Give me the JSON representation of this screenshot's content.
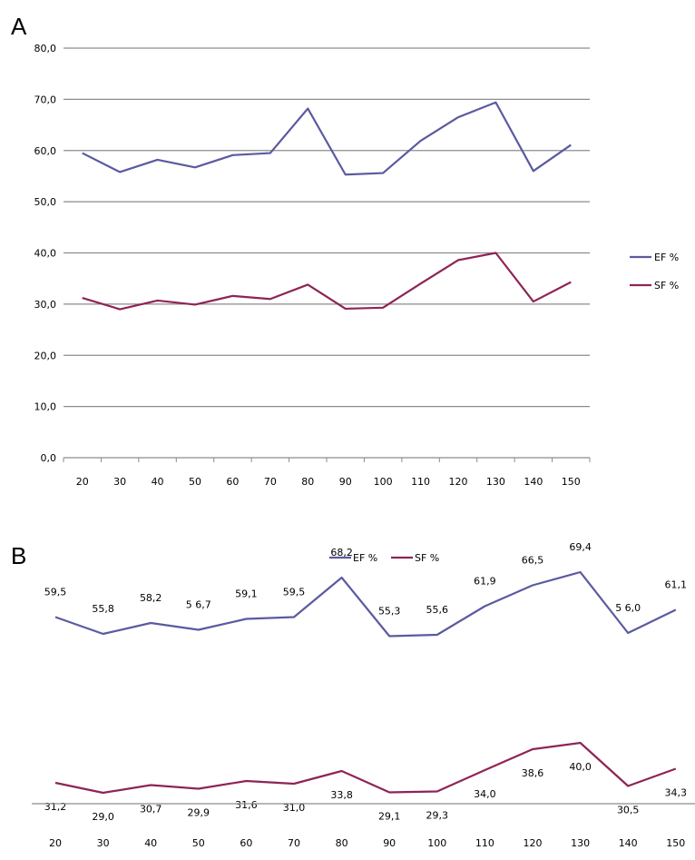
{
  "panels": {
    "a_letter": "A",
    "b_letter": "B"
  },
  "colors": {
    "ef": "#5a5aa0",
    "sf": "#8e2456",
    "grid": "#8c8c8c"
  },
  "chart_data": [
    {
      "type": "line",
      "panel": "A",
      "categories": [
        "20",
        "30",
        "40",
        "50",
        "60",
        "70",
        "80",
        "90",
        "100",
        "110",
        "120",
        "130",
        "140",
        "150"
      ],
      "series": [
        {
          "name": "EF %",
          "values": [
            59.5,
            55.8,
            58.2,
            56.7,
            59.1,
            59.5,
            68.2,
            55.3,
            55.6,
            61.9,
            66.5,
            69.4,
            56.0,
            61.1
          ]
        },
        {
          "name": "SF %",
          "values": [
            31.2,
            29.0,
            30.7,
            29.9,
            31.6,
            31.0,
            33.8,
            29.1,
            29.3,
            34.0,
            38.6,
            40.0,
            30.5,
            34.3
          ]
        }
      ],
      "yticks": [
        "0,0",
        "10,0",
        "20,0",
        "30,0",
        "40,0",
        "50,0",
        "60,0",
        "70,0",
        "80,0"
      ],
      "ylim": [
        0,
        80
      ],
      "grid": true,
      "legend": "right"
    },
    {
      "type": "line",
      "panel": "B",
      "categories": [
        "20",
        "30",
        "40",
        "50",
        "60",
        "70",
        "80",
        "90",
        "100",
        "110",
        "120",
        "130",
        "140",
        "150"
      ],
      "series": [
        {
          "name": "EF %",
          "values": [
            59.5,
            55.8,
            58.2,
            56.7,
            59.1,
            59.5,
            68.2,
            55.3,
            55.6,
            61.9,
            66.5,
            69.4,
            56.0,
            61.1
          ],
          "labels": [
            "59,5",
            "55,8",
            "58,2",
            "5 6,7",
            "59,1",
            "59,5",
            "68,2",
            "55,3",
            "55,6",
            "61,9",
            "66,5",
            "69,4",
            "5 6,0",
            "61,1"
          ]
        },
        {
          "name": "SF %",
          "values": [
            31.2,
            29.0,
            30.7,
            29.9,
            31.6,
            31.0,
            33.8,
            29.1,
            29.3,
            34.0,
            38.6,
            40.0,
            30.5,
            34.3
          ],
          "labels": [
            "31,2",
            "29,0",
            "30,7",
            "29,9",
            "31,6",
            "31,0",
            "33,8",
            "29,1",
            "29,3",
            "34,0",
            "38,6",
            "40,0",
            "30,5",
            "34,3"
          ]
        }
      ],
      "grid": false,
      "legend": "top"
    }
  ]
}
